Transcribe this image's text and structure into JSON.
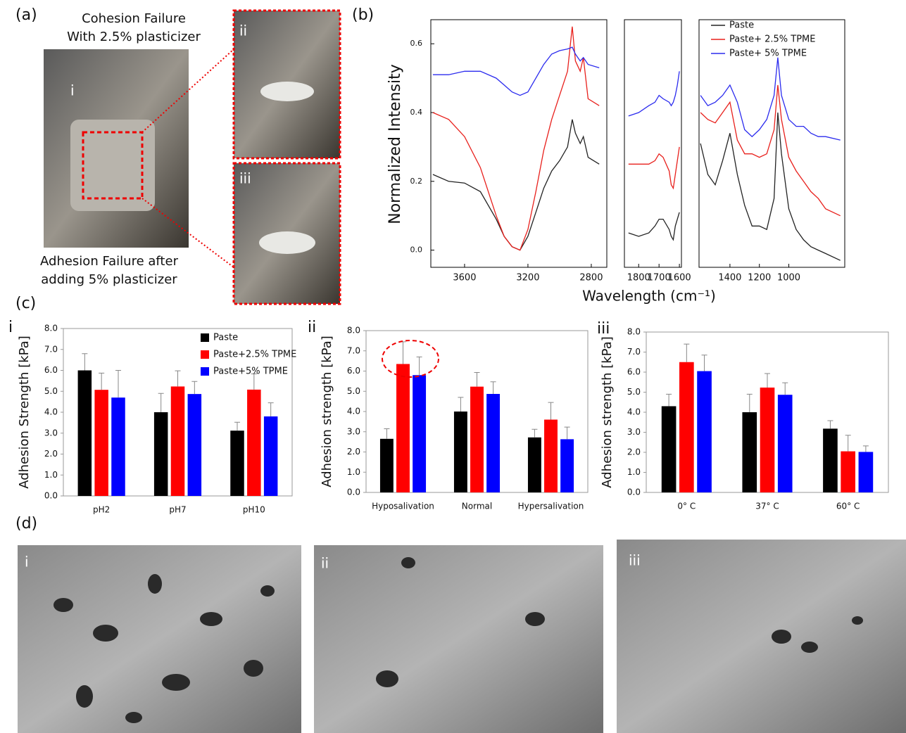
{
  "panel_a": {
    "label": "(a)",
    "top_caption": [
      "Cohesion Failure",
      "With 2.5% plasticizer"
    ],
    "bottom_caption": [
      "Adhesion Failure after",
      "adding 5% plasticizer"
    ],
    "sub_labels": [
      "i",
      "ii",
      "iii"
    ]
  },
  "panel_c": {
    "label": "(c)"
  },
  "panel_d": {
    "label": "(d)",
    "sub_labels": [
      "i",
      "ii",
      "iii"
    ]
  },
  "chart_data": [
    {
      "type": "line",
      "panel_label": "(b)",
      "ylabel": "Normalized Intensity",
      "xlabel": "Wavelength (cm⁻¹)",
      "ylim": [
        -0.05,
        0.67
      ],
      "yticks": [
        {
          "value": 0,
          "label": "0.0"
        },
        0.2,
        0.4,
        0.6
      ],
      "panels": [
        {
          "xlim": [
            3813,
            2702
          ],
          "xticks": [
            3600,
            3200,
            2800
          ],
          "x": [
            3800,
            3700,
            3600,
            3500,
            3400,
            3350,
            3300,
            3250,
            3200,
            3150,
            3100,
            3050,
            3000,
            2950,
            2920,
            2900,
            2870,
            2850,
            2820,
            2750
          ]
        },
        {
          "xlim": [
            1870,
            1590
          ],
          "xticks": [
            1800,
            1700,
            1600
          ],
          "x": [
            1850,
            1800,
            1750,
            1720,
            1700,
            1680,
            1650,
            1640,
            1630,
            1620,
            1610,
            1600
          ]
        },
        {
          "xlim": [
            1610,
            620
          ],
          "xticks": [
            1400,
            1200,
            1000
          ],
          "x": [
            1600,
            1550,
            1500,
            1450,
            1400,
            1350,
            1300,
            1250,
            1200,
            1150,
            1100,
            1075,
            1050,
            1000,
            950,
            900,
            850,
            800,
            750,
            650
          ]
        }
      ],
      "series": [
        {
          "name": "Paste",
          "color": "#222222",
          "values": [
            [
              0.22,
              0.2,
              0.195,
              0.17,
              0.09,
              0.04,
              0.01,
              0.0,
              0.04,
              0.11,
              0.18,
              0.23,
              0.26,
              0.3,
              0.38,
              0.34,
              0.31,
              0.33,
              0.27,
              0.25
            ],
            [
              0.05,
              0.04,
              0.05,
              0.07,
              0.09,
              0.09,
              0.06,
              0.04,
              0.03,
              0.07,
              0.09,
              0.11
            ],
            [
              0.31,
              0.22,
              0.19,
              0.26,
              0.34,
              0.22,
              0.13,
              0.07,
              0.07,
              0.06,
              0.15,
              0.4,
              0.28,
              0.12,
              0.06,
              0.03,
              0.01,
              0.0,
              -0.01,
              -0.03
            ]
          ]
        },
        {
          "name": "Paste+ 2.5% TPME",
          "color": "#e8201c",
          "values": [
            [
              0.4,
              0.38,
              0.33,
              0.24,
              0.1,
              0.04,
              0.01,
              0.0,
              0.06,
              0.17,
              0.29,
              0.38,
              0.45,
              0.52,
              0.65,
              0.55,
              0.52,
              0.56,
              0.44,
              0.42
            ],
            [
              0.25,
              0.25,
              0.25,
              0.26,
              0.28,
              0.27,
              0.23,
              0.19,
              0.18,
              0.22,
              0.26,
              0.3
            ],
            [
              0.4,
              0.38,
              0.37,
              0.4,
              0.43,
              0.32,
              0.28,
              0.28,
              0.27,
              0.28,
              0.35,
              0.48,
              0.38,
              0.27,
              0.23,
              0.2,
              0.17,
              0.15,
              0.12,
              0.1
            ]
          ]
        },
        {
          "name": "Paste+ 5% TPME",
          "color": "#2b2bee",
          "values": [
            [
              0.51,
              0.51,
              0.52,
              0.52,
              0.5,
              0.48,
              0.46,
              0.45,
              0.46,
              0.5,
              0.54,
              0.57,
              0.58,
              0.585,
              0.59,
              0.57,
              0.55,
              0.56,
              0.54,
              0.53
            ],
            [
              0.39,
              0.4,
              0.42,
              0.43,
              0.45,
              0.44,
              0.43,
              0.42,
              0.43,
              0.45,
              0.48,
              0.52
            ],
            [
              0.45,
              0.42,
              0.43,
              0.45,
              0.48,
              0.43,
              0.35,
              0.33,
              0.35,
              0.38,
              0.45,
              0.56,
              0.45,
              0.38,
              0.36,
              0.36,
              0.34,
              0.33,
              0.33,
              0.32
            ]
          ]
        }
      ]
    },
    {
      "type": "bar",
      "panel_label": "i",
      "ylabel": "Adhesion Strength [kPa]",
      "categories": [
        "pH2",
        "pH7",
        "pH10"
      ],
      "ylim": [
        0,
        8
      ],
      "yticks": [
        {
          "value": 0,
          "label": "0.0"
        },
        {
          "value": 1,
          "label": "1.0"
        },
        {
          "value": 2,
          "label": "2.0"
        },
        {
          "value": 3,
          "label": "3.0"
        },
        {
          "value": 4,
          "label": "4.0"
        },
        {
          "value": 5,
          "label": "5.0"
        },
        {
          "value": 6,
          "label": "6.0"
        },
        {
          "value": 7,
          "label": "7.0"
        },
        {
          "value": 8,
          "label": "8.0"
        }
      ],
      "series": [
        {
          "name": "Paste",
          "color": "#000000",
          "values": [
            6.0,
            4.0,
            3.12
          ],
          "errors": [
            0.8,
            0.9,
            0.4
          ]
        },
        {
          "name": "Paste+2.5% TPME",
          "color": "#ff0000",
          "values": [
            5.07,
            5.23,
            5.08
          ],
          "errors": [
            0.8,
            0.75,
            0.75
          ]
        },
        {
          "name": "Paste+5% TPME",
          "color": "#0000ff",
          "values": [
            4.7,
            4.87,
            3.8
          ],
          "errors": [
            1.3,
            0.6,
            0.65
          ]
        }
      ]
    },
    {
      "type": "bar",
      "panel_label": "ii",
      "ylabel": "Adhesion strength [kPa]",
      "categories": [
        "Hyposalivation",
        "Normal",
        "Hypersalivation"
      ],
      "ylim": [
        0,
        8
      ],
      "yticks": [
        {
          "value": 0,
          "label": "0.0"
        },
        {
          "value": 1,
          "label": "1.0"
        },
        {
          "value": 2,
          "label": "2.0"
        },
        {
          "value": 3,
          "label": "3.0"
        },
        {
          "value": 4,
          "label": "4.0"
        },
        {
          "value": 5,
          "label": "5.0"
        },
        {
          "value": 6,
          "label": "6.0"
        },
        {
          "value": 7,
          "label": "7.0"
        },
        {
          "value": 8,
          "label": "8.0"
        }
      ],
      "series": [
        {
          "color": "#000000",
          "values": [
            2.65,
            4.0,
            2.72
          ],
          "errors": [
            0.5,
            0.7,
            0.4
          ]
        },
        {
          "color": "#ff0000",
          "values": [
            6.35,
            5.23,
            3.6
          ],
          "errors": [
            1.1,
            0.7,
            0.85
          ]
        },
        {
          "color": "#0000ff",
          "values": [
            5.8,
            4.87,
            2.63
          ],
          "errors": [
            0.9,
            0.6,
            0.6
          ]
        }
      ]
    },
    {
      "type": "bar",
      "panel_label": "iii",
      "ylabel": "Adhesion strength [kPa]",
      "categories": [
        "0° C",
        "37° C",
        "60° C"
      ],
      "ylim": [
        0,
        8
      ],
      "yticks": [
        {
          "value": 0,
          "label": "0.0"
        },
        {
          "value": 1,
          "label": "1.0"
        },
        {
          "value": 2,
          "label": "2.0"
        },
        {
          "value": 3,
          "label": "3.0"
        },
        {
          "value": 4,
          "label": "4.0"
        },
        {
          "value": 5,
          "label": "5.0"
        },
        {
          "value": 6,
          "label": "6.0"
        },
        {
          "value": 7,
          "label": "7.0"
        },
        {
          "value": 8,
          "label": "8.0"
        }
      ],
      "series": [
        {
          "color": "#000000",
          "values": [
            4.3,
            4.0,
            3.18
          ],
          "errors": [
            0.6,
            0.9,
            0.4
          ]
        },
        {
          "color": "#ff0000",
          "values": [
            6.5,
            5.23,
            2.05
          ],
          "errors": [
            0.9,
            0.7,
            0.8
          ]
        },
        {
          "color": "#0000ff",
          "values": [
            6.05,
            4.87,
            2.02
          ],
          "errors": [
            0.8,
            0.6,
            0.3
          ]
        }
      ]
    }
  ]
}
